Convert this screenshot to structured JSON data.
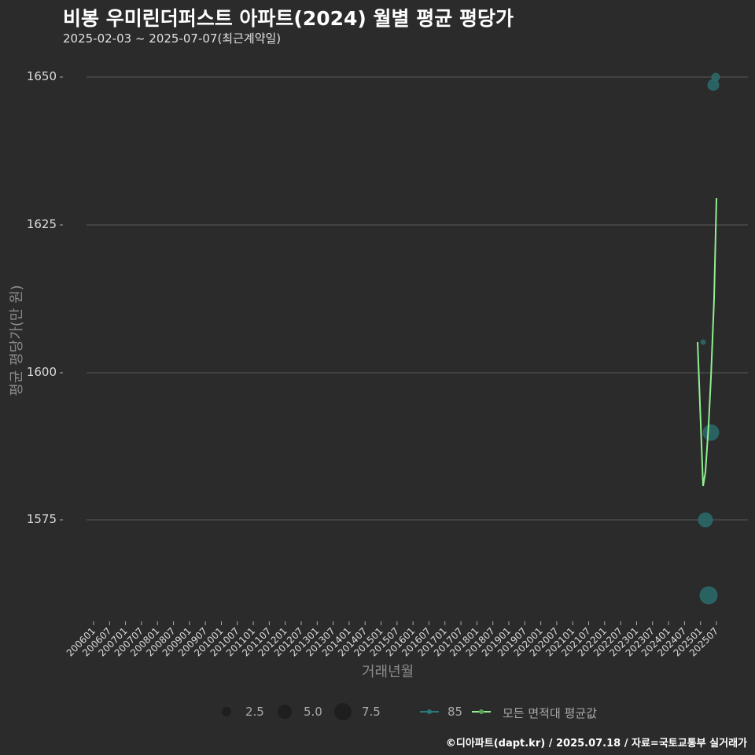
{
  "header": {
    "title": "비봉 우미린더퍼스트 아파트(2024) 월별 평균 평당가",
    "subtitle": "2025-02-03 ~ 2025-07-07(최근계약일)"
  },
  "axes": {
    "ylabel": "평균 평당가(만 원)",
    "xlabel": "거래년월",
    "yticks": [
      "1650",
      "1625",
      "1600",
      "1575"
    ]
  },
  "legend": {
    "size_labels": [
      "2.5",
      "5.0",
      "7.5"
    ],
    "series_85": "85",
    "series_all": "모든 면적대 평균값"
  },
  "footer": "©디아파트(dapt.kr) / 2025.07.18 / 자료=국토교통부 실거래가",
  "colors": {
    "background": "#2b2b2b",
    "points_85": "#2a6b6b",
    "line_all": "#90ee90",
    "grid": "#5a5a5a"
  },
  "chart_data": {
    "type": "scatter",
    "title": "비봉 우미린더퍼스트 아파트(2024) 월별 평균 평당가",
    "subtitle": "2025-02-03 ~ 2025-07-07(최근계약일)",
    "xlabel": "거래년월",
    "ylabel": "평균 평당가(만 원)",
    "ylim": [
      1557,
      1657
    ],
    "yticks": [
      1575,
      1600,
      1625,
      1650
    ],
    "xticks": [
      "200601",
      "200607",
      "200701",
      "200707",
      "200801",
      "200807",
      "200901",
      "200907",
      "201001",
      "201007",
      "201101",
      "201107",
      "201201",
      "201207",
      "201301",
      "201307",
      "201401",
      "201407",
      "201501",
      "201507",
      "201601",
      "201607",
      "201701",
      "201707",
      "201801",
      "201807",
      "201901",
      "201907",
      "202001",
      "202007",
      "202101",
      "202107",
      "202201",
      "202207",
      "202301",
      "202307",
      "202401",
      "202407",
      "202501",
      "202507"
    ],
    "grid": true,
    "legend_position": "bottom",
    "series": [
      {
        "name": "85",
        "kind": "points",
        "x": [
          "202502",
          "202503",
          "202504",
          "202505",
          "202506",
          "202507"
        ],
        "values": [
          1605.2,
          1575.0,
          1562.4,
          1589.9,
          1648.7,
          1650.0
        ],
        "sizes": [
          1,
          6,
          8,
          7,
          4,
          2
        ]
      },
      {
        "name": "모든 면적대 평균값",
        "kind": "line",
        "x": [
          "202502",
          "202503",
          "202504",
          "202505",
          "202506",
          "202507"
        ],
        "values": [
          1605.2,
          1580.9,
          1583.2,
          1598.0,
          1612.5,
          1629.5
        ]
      }
    ]
  }
}
